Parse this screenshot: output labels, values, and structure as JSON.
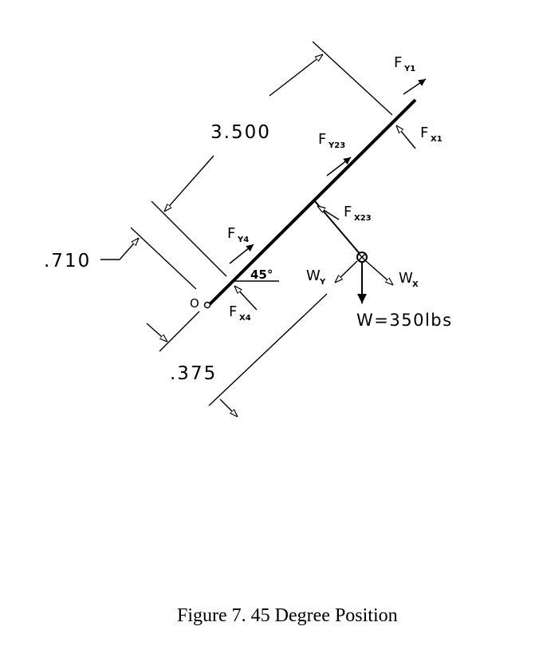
{
  "dimensions": {
    "length": "3.500",
    "offset_upper": ".710",
    "offset_lower": ".375",
    "angle": "45°"
  },
  "point_labels": {
    "pivot": "O"
  },
  "forces": {
    "fy1": {
      "main": "F",
      "sub": "Y1"
    },
    "fx1": {
      "main": "F",
      "sub": "X1"
    },
    "fy23": {
      "main": "F",
      "sub": "Y23"
    },
    "fx23": {
      "main": "F",
      "sub": "X23"
    },
    "fy4": {
      "main": "F",
      "sub": "Y4"
    },
    "fx4": {
      "main": "F",
      "sub": "X4"
    },
    "wy": {
      "main": "W",
      "sub": "Y"
    },
    "wx": {
      "main": "W",
      "sub": "X"
    }
  },
  "weight_label": "W=350lbs",
  "caption": "Figure 7.  45 Degree Position"
}
